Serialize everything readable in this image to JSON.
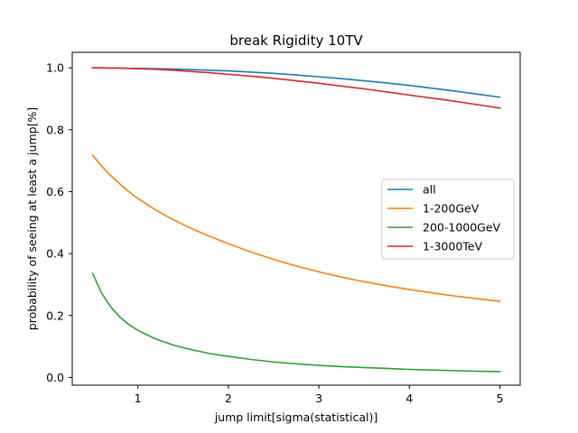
{
  "chart_data": {
    "type": "line",
    "title": "break Rigidity 10TV",
    "xlabel": "jump limit[sigma(statistical)]",
    "ylabel": "probability of seeing at least a jump[%]",
    "xlim": [
      0.275,
      5.225
    ],
    "ylim": [
      -0.025,
      1.05
    ],
    "xticks": [
      1,
      2,
      3,
      4,
      5
    ],
    "xtick_labels": [
      "1",
      "2",
      "3",
      "4",
      "5"
    ],
    "yticks": [
      0.0,
      0.2,
      0.4,
      0.6,
      0.8,
      1.0
    ],
    "ytick_labels": [
      "0.0",
      "0.2",
      "0.4",
      "0.6",
      "0.8",
      "1.0"
    ],
    "grid": false,
    "legend_position": "center-right",
    "x": [
      0.5,
      0.6,
      0.7,
      0.8,
      0.9,
      1.0,
      1.2,
      1.4,
      1.6,
      1.8,
      2.0,
      2.25,
      2.5,
      2.75,
      3.0,
      3.25,
      3.5,
      3.75,
      4.0,
      4.25,
      4.5,
      4.75,
      5.0
    ],
    "series": [
      {
        "name": "all",
        "color": "#1f77b4",
        "values": [
          1.0,
          1.0,
          0.999,
          0.999,
          0.998,
          0.998,
          0.997,
          0.996,
          0.994,
          0.992,
          0.99,
          0.986,
          0.982,
          0.977,
          0.971,
          0.965,
          0.958,
          0.951,
          0.943,
          0.934,
          0.925,
          0.915,
          0.905
        ]
      },
      {
        "name": "1-200GeV",
        "color": "#ff7f0e",
        "values": [
          0.718,
          0.682,
          0.652,
          0.625,
          0.6,
          0.578,
          0.54,
          0.508,
          0.48,
          0.455,
          0.432,
          0.405,
          0.381,
          0.36,
          0.341,
          0.324,
          0.309,
          0.296,
          0.284,
          0.273,
          0.263,
          0.254,
          0.246
        ]
      },
      {
        "name": "200-1000GeV",
        "color": "#2ca02c",
        "values": [
          0.336,
          0.272,
          0.228,
          0.195,
          0.171,
          0.152,
          0.124,
          0.104,
          0.089,
          0.077,
          0.068,
          0.058,
          0.05,
          0.044,
          0.039,
          0.035,
          0.032,
          0.029,
          0.026,
          0.024,
          0.022,
          0.02,
          0.019
        ]
      },
      {
        "name": "1-3000TeV",
        "color": "#d62728",
        "values": [
          1.0,
          1.0,
          0.999,
          0.999,
          0.998,
          0.997,
          0.995,
          0.992,
          0.988,
          0.984,
          0.979,
          0.973,
          0.966,
          0.958,
          0.95,
          0.941,
          0.932,
          0.922,
          0.912,
          0.902,
          0.892,
          0.881,
          0.87
        ]
      }
    ]
  }
}
